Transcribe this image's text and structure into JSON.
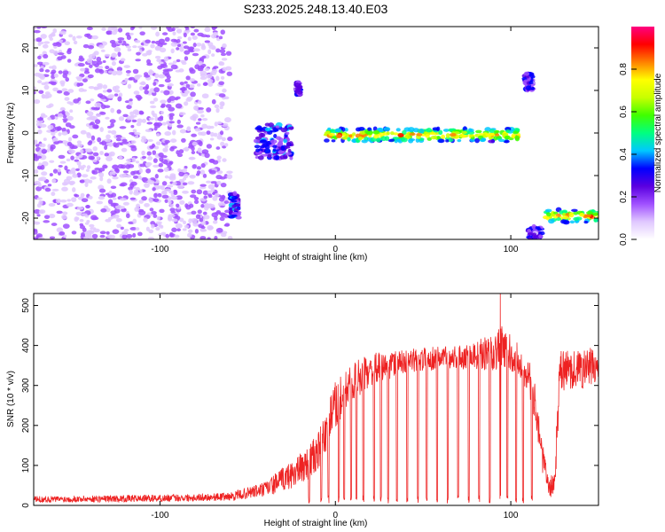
{
  "title": "S233.2025.248.13.40.E03",
  "chart_data": [
    {
      "type": "heatmap",
      "xlabel": "Height of straight line (km)",
      "ylabel": "Frequency (Hz)",
      "xlim": [
        -172,
        150
      ],
      "ylim": [
        -25,
        25
      ],
      "xticks": [
        -100,
        0,
        100
      ],
      "yticks": [
        -20,
        -10,
        0,
        10,
        20
      ],
      "colorbar": {
        "label": "Normalized spectral amplitude",
        "range": [
          0,
          1
        ],
        "ticks": [
          "0.0",
          "0.2",
          "0.4",
          "0.6",
          "0.8"
        ],
        "colormap": [
          "#ffffff",
          "#e0c8ff",
          "#a050ff",
          "#5a00e0",
          "#0000ff",
          "#00c8ff",
          "#00ff80",
          "#40ff00",
          "#c8ff00",
          "#ffff00",
          "#ff8000",
          "#ff0000",
          "#ff0080"
        ]
      },
      "regions": [
        {
          "x": [
            -172,
            -60
          ],
          "y": [
            -25,
            25
          ],
          "level": 0.15,
          "pattern": "scattered noise"
        },
        {
          "x": [
            -45,
            -25
          ],
          "y": [
            -6,
            2
          ],
          "level": 0.35,
          "pattern": "blob"
        },
        {
          "x": [
            -22,
            -20
          ],
          "y": [
            9,
            12
          ],
          "level": 0.3,
          "pattern": "blob"
        },
        {
          "x": [
            -60,
            -55
          ],
          "y": [
            -20,
            -14
          ],
          "level": 0.35,
          "pattern": "streak"
        },
        {
          "x": [
            -5,
            105
          ],
          "y": [
            -2,
            1
          ],
          "level": 0.85,
          "pattern": "band"
        },
        {
          "x": [
            108,
            113
          ],
          "y": [
            10,
            14
          ],
          "level": 0.3,
          "pattern": "blob"
        },
        {
          "x": [
            110,
            118
          ],
          "y": [
            -25,
            -22
          ],
          "level": 0.3,
          "pattern": "blob"
        },
        {
          "x": [
            120,
            150
          ],
          "y": [
            -21,
            -18
          ],
          "level": 0.85,
          "pattern": "band"
        }
      ]
    },
    {
      "type": "line",
      "xlabel": "Height of straight line (km)",
      "ylabel": "SNR (10 * v/v)",
      "xlim": [
        -172,
        150
      ],
      "ylim": [
        0,
        530
      ],
      "xticks": [
        -100,
        0,
        100
      ],
      "yticks": [
        0,
        100,
        200,
        300,
        400,
        500
      ],
      "color": "#ee2222",
      "envelope": {
        "x": [
          -172,
          -100,
          -60,
          -40,
          -20,
          -10,
          0,
          10,
          20,
          40,
          60,
          80,
          90,
          95,
          100,
          105,
          110,
          115,
          118,
          122,
          125,
          128,
          132,
          140,
          150
        ],
        "mean": [
          15,
          18,
          22,
          40,
          90,
          130,
          250,
          310,
          340,
          360,
          370,
          375,
          385,
          390,
          380,
          360,
          330,
          230,
          120,
          40,
          60,
          330,
          340,
          340,
          350
        ],
        "noise": [
          8,
          9,
          10,
          20,
          40,
          50,
          60,
          50,
          40,
          30,
          30,
          35,
          50,
          60,
          45,
          45,
          45,
          50,
          40,
          20,
          40,
          60,
          50,
          50,
          50
        ]
      },
      "dropouts_x": [
        -15,
        -8,
        -4,
        2,
        5,
        9,
        12,
        16,
        22,
        26,
        30,
        35,
        41,
        47,
        52,
        58,
        64,
        70,
        76,
        82,
        88,
        94,
        98,
        103,
        107,
        112
      ],
      "peak": {
        "x": 94,
        "y": 530
      }
    }
  ]
}
